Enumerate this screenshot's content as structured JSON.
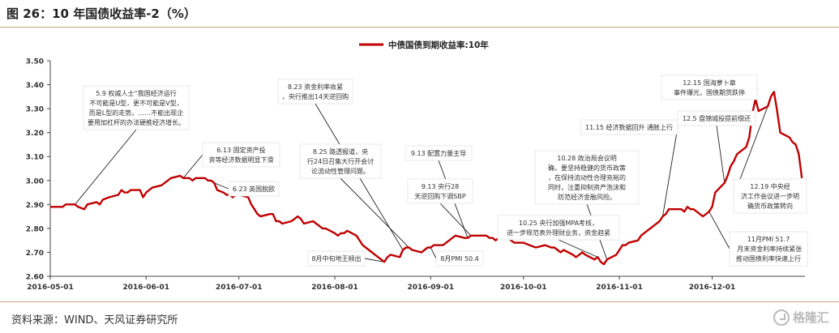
{
  "figure": {
    "title": "图 26：10 年国债收益率-2（%）",
    "source": "资料来源：WIND、天风证券研究所",
    "watermark": "格隆汇"
  },
  "chart_data": {
    "type": "line",
    "title": "",
    "xlabel": "",
    "ylabel": "",
    "ylim": [
      2.6,
      3.5
    ],
    "yticks": [
      "2.60",
      "2.70",
      "2.80",
      "2.90",
      "3.00",
      "3.10",
      "3.20",
      "3.30",
      "3.40",
      "3.50"
    ],
    "xticks": [
      {
        "label": "2016-05-01",
        "date": "2016-05-01"
      },
      {
        "label": "2016-06-01",
        "date": "2016-06-01"
      },
      {
        "label": "2016-07-01",
        "date": "2016-07-01"
      },
      {
        "label": "2016-08-01",
        "date": "2016-08-01"
      },
      {
        "label": "2016-09-01",
        "date": "2016-09-01"
      },
      {
        "label": "2016-10-01",
        "date": "2016-10-01"
      },
      {
        "label": "2016-11-01",
        "date": "2016-11-01"
      },
      {
        "label": "2016-12-01",
        "date": "2016-12-01"
      }
    ],
    "grid": false,
    "legend_position": "top-center",
    "series_color": "#c00000",
    "series": [
      {
        "name": "中债国债到期收益率:10年",
        "points": [
          [
            "2016-05-01",
            2.89
          ],
          [
            "2016-05-03",
            2.89
          ],
          [
            "2016-05-05",
            2.89
          ],
          [
            "2016-05-06",
            2.9
          ],
          [
            "2016-05-09",
            2.9
          ],
          [
            "2016-05-10",
            2.89
          ],
          [
            "2016-05-12",
            2.88
          ],
          [
            "2016-05-13",
            2.9
          ],
          [
            "2016-05-16",
            2.91
          ],
          [
            "2016-05-17",
            2.9
          ],
          [
            "2016-05-18",
            2.92
          ],
          [
            "2016-05-20",
            2.93
          ],
          [
            "2016-05-23",
            2.94
          ],
          [
            "2016-05-24",
            2.96
          ],
          [
            "2016-05-25",
            2.95
          ],
          [
            "2016-05-26",
            2.95
          ],
          [
            "2016-05-27",
            2.96
          ],
          [
            "2016-05-30",
            2.96
          ],
          [
            "2016-05-31",
            2.93
          ],
          [
            "2016-06-01",
            2.95
          ],
          [
            "2016-06-03",
            2.97
          ],
          [
            "2016-06-06",
            2.98
          ],
          [
            "2016-06-07",
            2.99
          ],
          [
            "2016-06-08",
            3.0
          ],
          [
            "2016-06-09",
            3.01
          ],
          [
            "2016-06-12",
            3.02
          ],
          [
            "2016-06-13",
            3.01
          ],
          [
            "2016-06-14",
            3.01
          ],
          [
            "2016-06-15",
            3.01
          ],
          [
            "2016-06-16",
            3.0
          ],
          [
            "2016-06-17",
            3.01
          ],
          [
            "2016-06-20",
            3.01
          ],
          [
            "2016-06-21",
            3.0
          ],
          [
            "2016-06-22",
            3.0
          ],
          [
            "2016-06-23",
            2.99
          ],
          [
            "2016-06-24",
            2.96
          ],
          [
            "2016-06-26",
            2.95
          ],
          [
            "2016-06-27",
            2.94
          ],
          [
            "2016-06-28",
            2.94
          ],
          [
            "2016-06-29",
            2.93
          ],
          [
            "2016-06-30",
            2.94
          ],
          [
            "2016-07-01",
            2.94
          ],
          [
            "2016-07-04",
            2.93
          ],
          [
            "2016-07-05",
            2.9
          ],
          [
            "2016-07-06",
            2.88
          ],
          [
            "2016-07-07",
            2.86
          ],
          [
            "2016-07-08",
            2.85
          ],
          [
            "2016-07-11",
            2.86
          ],
          [
            "2016-07-12",
            2.86
          ],
          [
            "2016-07-13",
            2.83
          ],
          [
            "2016-07-14",
            2.83
          ],
          [
            "2016-07-15",
            2.82
          ],
          [
            "2016-07-18",
            2.83
          ],
          [
            "2016-07-19",
            2.84
          ],
          [
            "2016-07-20",
            2.85
          ],
          [
            "2016-07-21",
            2.84
          ],
          [
            "2016-07-22",
            2.82
          ],
          [
            "2016-07-25",
            2.83
          ],
          [
            "2016-07-26",
            2.82
          ],
          [
            "2016-07-27",
            2.81
          ],
          [
            "2016-07-28",
            2.8
          ],
          [
            "2016-07-29",
            2.8
          ],
          [
            "2016-08-01",
            2.78
          ],
          [
            "2016-08-02",
            2.77
          ],
          [
            "2016-08-03",
            2.78
          ],
          [
            "2016-08-04",
            2.78
          ],
          [
            "2016-08-05",
            2.79
          ],
          [
            "2016-08-08",
            2.77
          ],
          [
            "2016-08-09",
            2.75
          ],
          [
            "2016-08-10",
            2.73
          ],
          [
            "2016-08-11",
            2.72
          ],
          [
            "2016-08-12",
            2.71
          ],
          [
            "2016-08-15",
            2.68
          ],
          [
            "2016-08-16",
            2.67
          ],
          [
            "2016-08-17",
            2.66
          ],
          [
            "2016-08-18",
            2.68
          ],
          [
            "2016-08-19",
            2.69
          ],
          [
            "2016-08-22",
            2.68
          ],
          [
            "2016-08-23",
            2.71
          ],
          [
            "2016-08-24",
            2.72
          ],
          [
            "2016-08-25",
            2.72
          ],
          [
            "2016-08-26",
            2.71
          ],
          [
            "2016-08-29",
            2.7
          ],
          [
            "2016-08-30",
            2.71
          ],
          [
            "2016-08-31",
            2.72
          ],
          [
            "2016-09-01",
            2.72
          ],
          [
            "2016-09-02",
            2.73
          ],
          [
            "2016-09-05",
            2.73
          ],
          [
            "2016-09-06",
            2.74
          ],
          [
            "2016-09-07",
            2.75
          ],
          [
            "2016-09-08",
            2.76
          ],
          [
            "2016-09-09",
            2.77
          ],
          [
            "2016-09-12",
            2.76
          ],
          [
            "2016-09-13",
            2.76
          ],
          [
            "2016-09-14",
            2.77
          ],
          [
            "2016-09-15",
            2.77
          ],
          [
            "2016-09-19",
            2.77
          ],
          [
            "2016-09-20",
            2.76
          ],
          [
            "2016-09-21",
            2.76
          ],
          [
            "2016-09-22",
            2.75
          ],
          [
            "2016-09-23",
            2.76
          ],
          [
            "2016-09-26",
            2.76
          ],
          [
            "2016-09-27",
            2.75
          ],
          [
            "2016-09-28",
            2.74
          ],
          [
            "2016-09-29",
            2.74
          ],
          [
            "2016-09-30",
            2.74
          ],
          [
            "2016-10-01",
            2.74
          ],
          [
            "2016-10-03",
            2.73
          ],
          [
            "2016-10-05",
            2.72
          ],
          [
            "2016-10-08",
            2.73
          ],
          [
            "2016-10-10",
            2.72
          ],
          [
            "2016-10-11",
            2.72
          ],
          [
            "2016-10-12",
            2.71
          ],
          [
            "2016-10-13",
            2.7
          ],
          [
            "2016-10-14",
            2.71
          ],
          [
            "2016-10-17",
            2.69
          ],
          [
            "2016-10-18",
            2.68
          ],
          [
            "2016-10-19",
            2.69
          ],
          [
            "2016-10-20",
            2.7
          ],
          [
            "2016-10-21",
            2.69
          ],
          [
            "2016-10-24",
            2.67
          ],
          [
            "2016-10-25",
            2.68
          ],
          [
            "2016-10-26",
            2.66
          ],
          [
            "2016-10-27",
            2.65
          ],
          [
            "2016-10-28",
            2.67
          ],
          [
            "2016-10-31",
            2.69
          ],
          [
            "2016-11-01",
            2.71
          ],
          [
            "2016-11-02",
            2.73
          ],
          [
            "2016-11-03",
            2.73
          ],
          [
            "2016-11-04",
            2.74
          ],
          [
            "2016-11-07",
            2.75
          ],
          [
            "2016-11-08",
            2.77
          ],
          [
            "2016-11-09",
            2.78
          ],
          [
            "2016-11-10",
            2.79
          ],
          [
            "2016-11-11",
            2.8
          ],
          [
            "2016-11-14",
            2.83
          ],
          [
            "2016-11-15",
            2.85
          ],
          [
            "2016-11-16",
            2.86
          ],
          [
            "2016-11-17",
            2.88
          ],
          [
            "2016-11-18",
            2.88
          ],
          [
            "2016-11-21",
            2.88
          ],
          [
            "2016-11-22",
            2.87
          ],
          [
            "2016-11-23",
            2.89
          ],
          [
            "2016-11-24",
            2.88
          ],
          [
            "2016-11-25",
            2.88
          ],
          [
            "2016-11-28",
            2.85
          ],
          [
            "2016-11-29",
            2.86
          ],
          [
            "2016-11-30",
            2.87
          ],
          [
            "2016-12-01",
            2.89
          ],
          [
            "2016-12-02",
            2.95
          ],
          [
            "2016-12-05",
            2.99
          ],
          [
            "2016-12-06",
            3.02
          ],
          [
            "2016-12-07",
            3.06
          ],
          [
            "2016-12-08",
            3.08
          ],
          [
            "2016-12-09",
            3.11
          ],
          [
            "2016-12-12",
            3.14
          ],
          [
            "2016-12-13",
            3.18
          ],
          [
            "2016-12-14",
            3.28
          ],
          [
            "2016-12-15",
            3.34
          ],
          [
            "2016-12-16",
            3.29
          ],
          [
            "2016-12-19",
            3.31
          ],
          [
            "2016-12-20",
            3.35
          ],
          [
            "2016-12-21",
            3.37
          ],
          [
            "2016-12-22",
            3.29
          ],
          [
            "2016-12-23",
            3.2
          ],
          [
            "2016-12-26",
            3.18
          ],
          [
            "2016-12-27",
            3.16
          ],
          [
            "2016-12-28",
            3.15
          ],
          [
            "2016-12-29",
            3.11
          ],
          [
            "2016-12-30",
            3.01
          ]
        ]
      }
    ],
    "annotations": [
      {
        "text": "5.9 权威人士“我国经济运行不可能是U型，更不可能是V型，而是L型的走势。……不能出现企要用加杠杆的办法硬推经济增长。",
        "date": "2016-05-09",
        "value": 2.9
      },
      {
        "text": "6.13 固定资产投资等经济数据明显下滑",
        "date": "2016-06-13",
        "value": 3.01
      },
      {
        "text": "6.23 英国脱欧",
        "date": "2016-06-23",
        "value": 2.99
      },
      {
        "text": "8.23 资金利率收紧，央行推出14天逆回购",
        "date": "2016-08-23",
        "value": 2.71
      },
      {
        "text": "8.25 路透报道，央行24日召集大行开会讨论流动性管理问题。",
        "date": "2016-08-25",
        "value": 2.72
      },
      {
        "text": "8月中旬地王频出",
        "date": "2016-08-17",
        "value": 2.66
      },
      {
        "text": "8月PMI 50.4",
        "date": "2016-09-01",
        "value": 2.72
      },
      {
        "text": "9.13 配置力量主导",
        "date": "2016-09-13",
        "value": 2.76
      },
      {
        "text": "9.13 央行28天逆回购下调SBP",
        "date": "2016-09-14",
        "value": 2.77
      },
      {
        "text": "10.28 政治局会议明确，要坚持稳健的货币政策，在保持流动性合理充裕的同时，注重抑制资产泡沫和防范经济金融风险。",
        "date": "2016-10-28",
        "value": 2.67
      },
      {
        "text": "10.25 央行加强MPA考核，进一步规范表外理财业务，资金趋紧",
        "date": "2016-10-25",
        "value": 2.68
      },
      {
        "text": "11.15 经济数据回升 通胀上行",
        "date": "2016-11-15",
        "value": 2.85
      },
      {
        "text": "12.15 国海萝卜章事件爆光，国债期货跌停",
        "date": "2016-12-15",
        "value": 3.34
      },
      {
        "text": "12.5 盘锦城投提前偿还",
        "date": "2016-12-05",
        "value": 2.99
      },
      {
        "text": "12.19 中央经济工作会议进一步明确货币政策转向",
        "date": "2016-12-19",
        "value": 3.31
      },
      {
        "text": "11月PMI 51.7 月末资金利率持续紧张推动国债利率快速上行",
        "date": "2016-11-30",
        "value": 2.87
      }
    ]
  }
}
